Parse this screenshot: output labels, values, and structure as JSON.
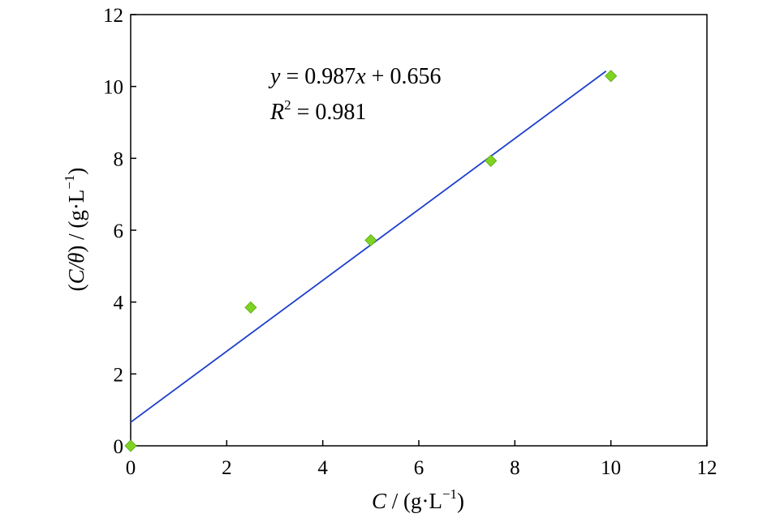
{
  "chart_data": {
    "type": "scatter",
    "title": "",
    "xlabel": {
      "var": "C",
      "rest": " / (g·L",
      "sup": "−1",
      "close": ")"
    },
    "ylabel": {
      "open": "(",
      "var": "C/θ",
      "rest": ") / (g·L",
      "sup": "−1",
      "close": ")"
    },
    "xlim": [
      0,
      12
    ],
    "ylim": [
      0,
      12
    ],
    "xticks": [
      0,
      2,
      4,
      6,
      8,
      10,
      12
    ],
    "yticks": [
      0,
      2,
      4,
      6,
      8,
      10,
      12
    ],
    "grid": false,
    "series": [
      {
        "type": "scatter",
        "marker": "diamond",
        "color": "#7FD321",
        "points": [
          {
            "x": 0,
            "y": 0
          },
          {
            "x": 2.5,
            "y": 3.85
          },
          {
            "x": 5,
            "y": 5.72
          },
          {
            "x": 7.5,
            "y": 7.93
          },
          {
            "x": 10,
            "y": 10.29
          }
        ]
      },
      {
        "type": "line",
        "color": "#1F3FCC",
        "slope": 0.987,
        "intercept": 0.656,
        "x_range": [
          0,
          9.9
        ]
      }
    ],
    "annotations": {
      "equation": {
        "y": "y",
        "eq": " = 0.987",
        "x": "x",
        "tail": " + 0.656"
      },
      "r2": {
        "r": "R",
        "sup": "2",
        "tail": " = 0.981"
      }
    }
  }
}
